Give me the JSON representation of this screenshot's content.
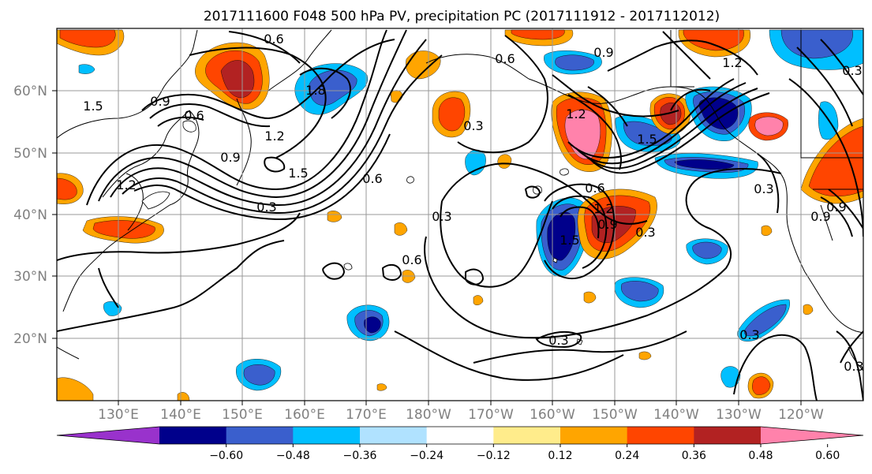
{
  "title": "2017111600 F048 500 hPa PV, precipitation PC (2017111912 - 2017112012)",
  "map": {
    "lat_labels": [
      "60°N",
      "50°N",
      "40°N",
      "30°N",
      "20°N"
    ],
    "lon_labels": [
      "130°E",
      "140°E",
      "150°E",
      "160°E",
      "170°E",
      "180°W",
      "170°W",
      "160°W",
      "150°W",
      "140°W",
      "130°W",
      "120°W"
    ],
    "contour_labels": [
      "0.6",
      "0.9",
      "1.2",
      "1.5",
      "1.8",
      "0.6",
      "0.9",
      "1.5",
      "1.2",
      "0.3",
      "0.6",
      "0.3",
      "0.3",
      "0.6",
      "0.3",
      "0.6",
      "0.9",
      "1.2",
      "1.5",
      "0.3",
      "0.6",
      "0.9",
      "1.2",
      "1.5",
      "0.3",
      "0.3",
      "0.9",
      "1.2",
      "0.3",
      "0.3",
      "0.9"
    ]
  },
  "colorbar": {
    "labels": [
      "−0.60",
      "−0.48",
      "−0.36",
      "−0.24",
      "−0.12",
      "0.12",
      "0.24",
      "0.36",
      "0.48",
      "0.60"
    ],
    "colors": [
      "#9932cc",
      "#00008b",
      "#3a5fcd",
      "#00bfff",
      "#b0e2ff",
      "#ffffff",
      "#ffec8b",
      "#ffa500",
      "#ff4500",
      "#b22222",
      "#ff82ab"
    ]
  }
}
